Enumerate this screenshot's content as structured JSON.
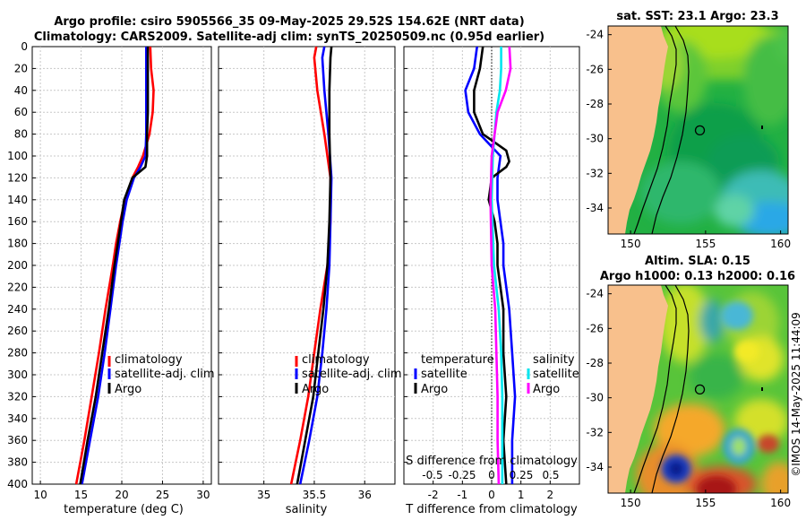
{
  "title_line1": "Argo profile: csiro 5905566_35 09-May-2025 29.52S 154.62E (NRT data)",
  "title_line2": "Climatology: CARS2009. Satellite-adj clim: synTS_20250509.nc (0.95d earlier)",
  "watermark": "©IMOS 14-May-2025 11:44:09",
  "colors": {
    "climatology": "#ff0000",
    "satellite": "#0000ff",
    "argo": "#000000",
    "cyan": "#00e5ee",
    "magenta": "#ff00ff",
    "land": "#f8c08c"
  },
  "chart_data": [
    {
      "type": "line",
      "id": "temperature",
      "xlabel": "temperature (deg C)",
      "xlim": [
        9,
        31
      ],
      "xticks": [
        "10",
        "15",
        "20",
        "25",
        "30"
      ],
      "ylim": [
        0,
        400
      ],
      "yticks": [
        "0",
        "20",
        "40",
        "60",
        "80",
        "100",
        "120",
        "140",
        "160",
        "180",
        "200",
        "220",
        "240",
        "260",
        "280",
        "300",
        "320",
        "340",
        "360",
        "380",
        "400"
      ],
      "legend": [
        "climatology",
        "satellite-adj. clim",
        "Argo"
      ],
      "series": [
        {
          "name": "climatology",
          "depth": [
            0,
            20,
            40,
            60,
            80,
            100,
            110,
            120,
            140,
            160,
            180,
            200,
            240,
            280,
            320,
            360,
            400
          ],
          "values": [
            23.5,
            23.6,
            23.9,
            23.8,
            23.4,
            22.6,
            22.0,
            21.3,
            20.4,
            19.8,
            19.3,
            18.9,
            18.0,
            17.2,
            16.3,
            15.4,
            14.4
          ]
        },
        {
          "name": "satellite-adj. clim",
          "depth": [
            0,
            20,
            40,
            60,
            80,
            100,
            110,
            120,
            140,
            160,
            180,
            200,
            240,
            280,
            320,
            360,
            400
          ],
          "values": [
            23.0,
            23.0,
            23.0,
            23.0,
            23.0,
            22.9,
            22.3,
            21.5,
            20.6,
            20.1,
            19.7,
            19.3,
            18.6,
            17.9,
            17.1,
            16.1,
            15.1
          ]
        },
        {
          "name": "Argo",
          "depth": [
            0,
            20,
            40,
            60,
            80,
            100,
            110,
            120,
            140,
            160,
            180,
            200,
            240,
            280,
            320,
            360,
            400
          ],
          "values": [
            23.2,
            23.2,
            23.2,
            23.2,
            23.1,
            23.1,
            22.9,
            21.3,
            20.3,
            19.9,
            19.5,
            19.1,
            18.4,
            17.6,
            16.8,
            15.8,
            14.9
          ]
        }
      ]
    },
    {
      "type": "line",
      "id": "salinity",
      "xlabel": "salinity",
      "xlim": [
        34.55,
        36.3
      ],
      "xticks": [
        "35",
        "35.5",
        "36"
      ],
      "ylim": [
        0,
        400
      ],
      "legend": [
        "climatology",
        "satellite-adj. clim",
        "Argo"
      ],
      "series": [
        {
          "name": "climatology",
          "depth": [
            0,
            10,
            40,
            80,
            120,
            160,
            200,
            240,
            280,
            320,
            360,
            400
          ],
          "values": [
            35.52,
            35.5,
            35.53,
            35.6,
            35.66,
            35.66,
            35.63,
            35.56,
            35.5,
            35.44,
            35.36,
            35.27
          ]
        },
        {
          "name": "satellite-adj. clim",
          "depth": [
            0,
            10,
            40,
            80,
            120,
            160,
            200,
            240,
            280,
            320,
            360,
            400
          ],
          "values": [
            35.6,
            35.58,
            35.6,
            35.64,
            35.67,
            35.66,
            35.65,
            35.62,
            35.58,
            35.53,
            35.45,
            35.36
          ]
        },
        {
          "name": "Argo",
          "depth": [
            0,
            10,
            40,
            80,
            120,
            160,
            200,
            240,
            280,
            320,
            360,
            400
          ],
          "values": [
            35.67,
            35.66,
            35.65,
            35.65,
            35.66,
            35.65,
            35.63,
            35.59,
            35.54,
            35.49,
            35.41,
            35.33
          ]
        }
      ]
    },
    {
      "type": "line",
      "id": "difference",
      "xlabel": "T difference from climatology",
      "xlabel_top": "S difference from climatology",
      "xlim": [
        -3,
        3
      ],
      "xticks": [
        "-2",
        "-1",
        "0",
        "1",
        "2"
      ],
      "xticks_top": [
        "-0.5",
        "-0.25",
        "0",
        "0.25",
        "0.5"
      ],
      "ylim": [
        0,
        400
      ],
      "legend_left_title": "temperature",
      "legend_right_title": "salinity",
      "legend": [
        "satellite",
        "Argo"
      ],
      "series": [
        {
          "name": "T satellite",
          "depth": [
            0,
            20,
            40,
            60,
            80,
            100,
            120,
            140,
            160,
            180,
            200,
            240,
            280,
            320,
            360,
            400
          ],
          "values": [
            -0.5,
            -0.6,
            -0.9,
            -0.8,
            -0.4,
            0.3,
            0.2,
            0.2,
            0.3,
            0.4,
            0.4,
            0.6,
            0.7,
            0.8,
            0.7,
            0.7
          ]
        },
        {
          "name": "T Argo",
          "depth": [
            0,
            20,
            40,
            60,
            80,
            95,
            105,
            110,
            120,
            140,
            160,
            180,
            200,
            240,
            280,
            320,
            360,
            400
          ],
          "values": [
            -0.3,
            -0.4,
            -0.6,
            -0.6,
            -0.3,
            0.5,
            0.6,
            0.5,
            0.0,
            -0.1,
            0.1,
            0.2,
            0.2,
            0.4,
            0.4,
            0.5,
            0.4,
            0.5
          ]
        },
        {
          "name": "S satellite",
          "depth": [
            0,
            20,
            40,
            60,
            100,
            140,
            200,
            240,
            280,
            320,
            360,
            400
          ],
          "values": [
            0.08,
            0.08,
            0.07,
            0.04,
            0.01,
            0.0,
            0.02,
            0.06,
            0.08,
            0.09,
            0.09,
            0.09
          ]
        },
        {
          "name": "S Argo",
          "depth": [
            0,
            20,
            40,
            60,
            100,
            140,
            200,
            240,
            280,
            320,
            360,
            400
          ],
          "values": [
            0.15,
            0.16,
            0.12,
            0.05,
            0.0,
            -0.01,
            0.0,
            0.03,
            0.04,
            0.05,
            0.05,
            0.06
          ]
        }
      ]
    },
    {
      "type": "heatmap",
      "id": "sst_map",
      "title": "sat. SST: 23.1 Argo: 23.3",
      "xlim": [
        148.5,
        160.5
      ],
      "ylim": [
        -35.5,
        -23.5
      ],
      "xticks": [
        "150",
        "155",
        "160"
      ],
      "yticks": [
        "-24",
        "-26",
        "-28",
        "-30",
        "-32",
        "-34"
      ],
      "argo_position": [
        154.62,
        -29.52
      ]
    },
    {
      "type": "heatmap",
      "id": "sla_map",
      "title": "Altim. SLA: 0.15",
      "subtitle": "Argo h1000: 0.13 h2000: 0.16",
      "xlim": [
        148.5,
        160.5
      ],
      "ylim": [
        -35.5,
        -23.5
      ],
      "xticks": [
        "150",
        "155",
        "160"
      ],
      "yticks": [
        "-24",
        "-26",
        "-28",
        "-30",
        "-32",
        "-34"
      ],
      "argo_position": [
        154.62,
        -29.52
      ]
    }
  ]
}
